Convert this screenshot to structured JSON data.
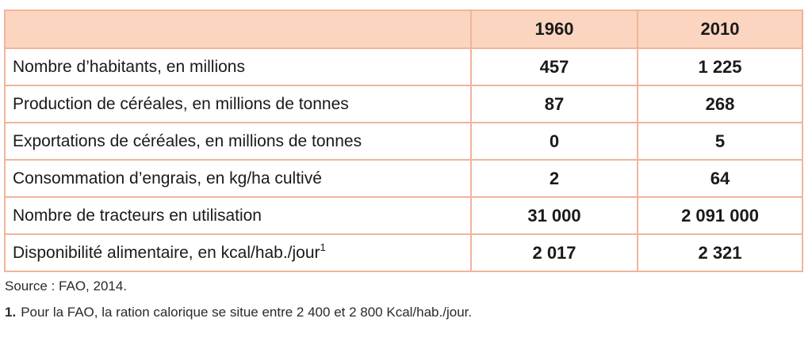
{
  "table": {
    "header": {
      "label": "",
      "year1": "1960",
      "year2": "2010"
    },
    "rows": [
      {
        "label": "Nombre d’habitants, en millions",
        "y1960": "457",
        "y2010": "1 225",
        "note": ""
      },
      {
        "label": "Production de céréales, en millions de tonnes",
        "y1960": "87",
        "y2010": "268",
        "note": ""
      },
      {
        "label": "Exportations de céréales, en millions de tonnes",
        "y1960": "0",
        "y2010": "5",
        "note": ""
      },
      {
        "label": "Consommation d’engrais, en kg/ha cultivé",
        "y1960": "2",
        "y2010": "64",
        "note": ""
      },
      {
        "label": "Nombre de tracteurs en utilisation",
        "y1960": "31 000",
        "y2010": "2 091 000",
        "note": ""
      },
      {
        "label": "Disponibilité alimentaire, en kcal/hab./jour",
        "y1960": "2 017",
        "y2010": "2 321",
        "note": "1"
      }
    ]
  },
  "source": "Source : FAO, 2014.",
  "footnote": {
    "number": "1.",
    "text": "Pour la FAO, la ration calorique se situe entre 2 400 et 2 800 Kcal/hab./jour."
  },
  "colors": {
    "header_fill": "#fbd5bf",
    "border": "#f1b49a"
  }
}
